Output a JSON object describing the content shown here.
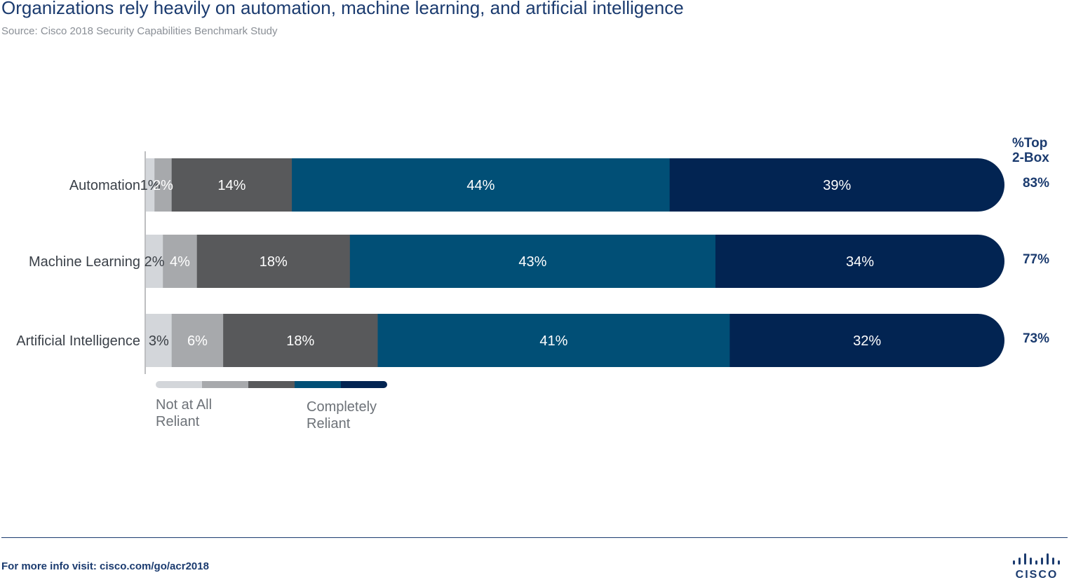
{
  "header": {
    "title": "Organizations rely heavily on automation, machine learning, and artificial intelligence",
    "subtitle": "Source: Cisco 2018 Security Capabilities Benchmark Study"
  },
  "chart_data": {
    "type": "bar",
    "orientation": "horizontal",
    "stacked": true,
    "categories": [
      "Automation",
      "Machine Learning",
      "Artificial Intelligence"
    ],
    "series": [
      {
        "values": [
          1,
          2,
          3
        ],
        "labels": [
          "1%",
          "2%",
          "3%"
        ],
        "color": "#d3d6da",
        "text_color": "#3a3f45"
      },
      {
        "values": [
          2,
          4,
          6
        ],
        "labels": [
          "2%",
          "4%",
          "6%"
        ],
        "color": "#a7a9ac",
        "text_color": "#ffffff"
      },
      {
        "values": [
          14,
          18,
          18
        ],
        "labels": [
          "14%",
          "18%",
          "18%"
        ],
        "color": "#58595b",
        "text_color": "#ffffff"
      },
      {
        "values": [
          44,
          43,
          41
        ],
        "labels": [
          "44%",
          "43%",
          "41%"
        ],
        "color": "#014f76",
        "text_color": "#ffffff"
      },
      {
        "values": [
          39,
          34,
          32
        ],
        "labels": [
          "39%",
          "34%",
          "32%"
        ],
        "color": "#022452",
        "text_color": "#ffffff"
      }
    ],
    "top2box": {
      "header": [
        "%Top",
        "2-Box"
      ],
      "values": [
        83,
        77,
        73
      ],
      "labels": [
        "83%",
        "77%",
        "73%"
      ]
    },
    "legend": {
      "colors": [
        "#d3d6da",
        "#a7a9ac",
        "#58595b",
        "#014f76",
        "#022452"
      ],
      "low_label": [
        "Not at All",
        "Reliant"
      ],
      "high_label": [
        "Completely",
        "Reliant"
      ],
      "placement": "bottom-left"
    },
    "grid": false
  },
  "footer": {
    "prefix": "For more info visit: ",
    "link": "cisco.com/go/acr2018",
    "logo_text": "CISCO"
  }
}
